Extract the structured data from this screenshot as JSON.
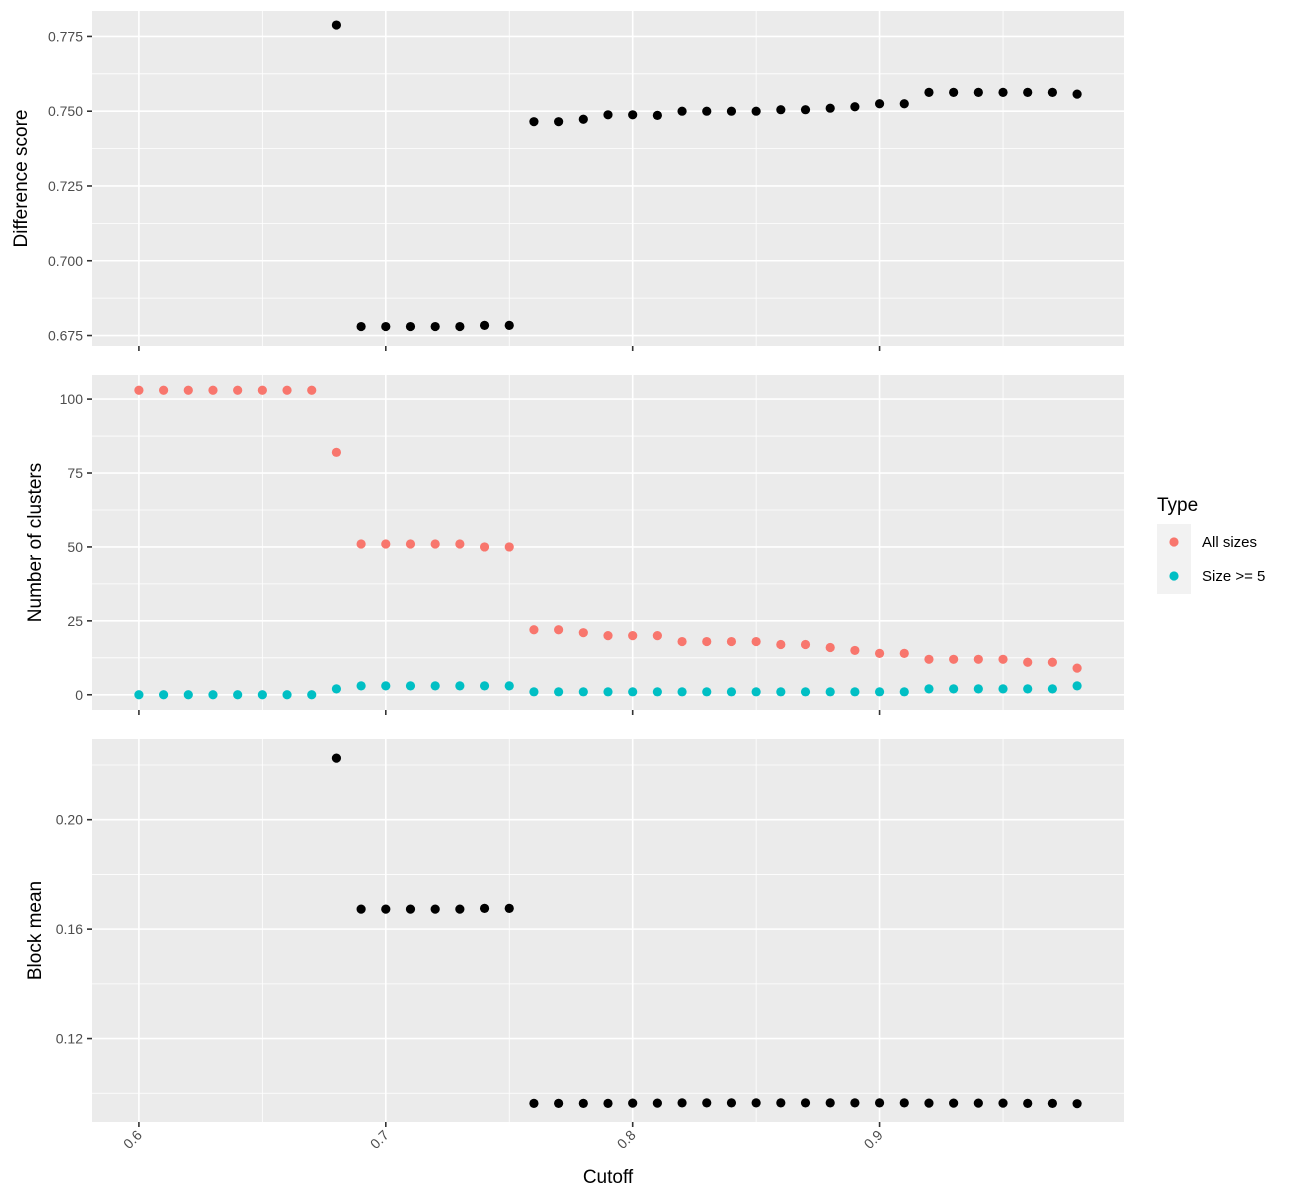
{
  "chart_data": {
    "type": "scatter",
    "x_title": "Cutoff",
    "x_ticks": [
      0.6,
      0.7,
      0.8,
      0.9
    ],
    "x_range": [
      0.581,
      0.999
    ],
    "x": [
      0.6,
      0.61,
      0.62,
      0.63,
      0.64,
      0.65,
      0.66,
      0.67,
      0.68,
      0.69,
      0.7,
      0.71,
      0.72,
      0.73,
      0.74,
      0.75,
      0.76,
      0.77,
      0.78,
      0.79,
      0.8,
      0.81,
      0.82,
      0.83,
      0.84,
      0.85,
      0.86,
      0.87,
      0.88,
      0.89,
      0.9,
      0.91,
      0.92,
      0.93,
      0.94,
      0.95,
      0.96,
      0.97,
      0.98
    ],
    "grid": true,
    "panels": [
      {
        "ylabel": "Difference score",
        "ylim": [
          0.6715,
          0.7835
        ],
        "yticks": [
          0.675,
          0.7,
          0.725,
          0.75,
          0.775
        ],
        "ytick_labels": [
          "0.675",
          "0.700",
          "0.725",
          "0.750",
          "0.775"
        ],
        "series": [
          {
            "color": "#000000",
            "points": [
              [
                0.68,
                0.7788
              ],
              [
                0.69,
                0.678
              ],
              [
                0.7,
                0.678
              ],
              [
                0.71,
                0.678
              ],
              [
                0.72,
                0.678
              ],
              [
                0.73,
                0.678
              ],
              [
                0.74,
                0.6784
              ],
              [
                0.75,
                0.6784
              ],
              [
                0.76,
                0.7465
              ],
              [
                0.77,
                0.7465
              ],
              [
                0.78,
                0.7473
              ],
              [
                0.79,
                0.7488
              ],
              [
                0.8,
                0.7488
              ],
              [
                0.81,
                0.7486
              ],
              [
                0.82,
                0.75
              ],
              [
                0.83,
                0.75
              ],
              [
                0.84,
                0.75
              ],
              [
                0.85,
                0.75
              ],
              [
                0.86,
                0.7505
              ],
              [
                0.87,
                0.7505
              ],
              [
                0.88,
                0.751
              ],
              [
                0.89,
                0.7515
              ],
              [
                0.9,
                0.7525
              ],
              [
                0.91,
                0.7525
              ],
              [
                0.92,
                0.7563
              ],
              [
                0.93,
                0.7563
              ],
              [
                0.94,
                0.7563
              ],
              [
                0.95,
                0.7563
              ],
              [
                0.96,
                0.7563
              ],
              [
                0.97,
                0.7563
              ],
              [
                0.98,
                0.7557
              ]
            ]
          }
        ]
      },
      {
        "ylabel": "Number of clusters",
        "ylim": [
          -5.15,
          108.15
        ],
        "yticks": [
          0,
          25,
          50,
          75,
          100
        ],
        "ytick_labels": [
          "0",
          "25",
          "50",
          "75",
          "100"
        ],
        "series": [
          {
            "name": "All sizes",
            "color": "#F8766D",
            "points": [
              [
                0.6,
                103
              ],
              [
                0.61,
                103
              ],
              [
                0.62,
                103
              ],
              [
                0.63,
                103
              ],
              [
                0.64,
                103
              ],
              [
                0.65,
                103
              ],
              [
                0.66,
                103
              ],
              [
                0.67,
                103
              ],
              [
                0.68,
                82
              ],
              [
                0.69,
                51
              ],
              [
                0.7,
                51
              ],
              [
                0.71,
                51
              ],
              [
                0.72,
                51
              ],
              [
                0.73,
                51
              ],
              [
                0.74,
                50
              ],
              [
                0.75,
                50
              ],
              [
                0.76,
                22
              ],
              [
                0.77,
                22
              ],
              [
                0.78,
                21
              ],
              [
                0.79,
                20
              ],
              [
                0.8,
                20
              ],
              [
                0.81,
                20
              ],
              [
                0.82,
                18
              ],
              [
                0.83,
                18
              ],
              [
                0.84,
                18
              ],
              [
                0.85,
                18
              ],
              [
                0.86,
                17
              ],
              [
                0.87,
                17
              ],
              [
                0.88,
                16
              ],
              [
                0.89,
                15
              ],
              [
                0.9,
                14
              ],
              [
                0.91,
                14
              ],
              [
                0.92,
                12
              ],
              [
                0.93,
                12
              ],
              [
                0.94,
                12
              ],
              [
                0.95,
                12
              ],
              [
                0.96,
                11
              ],
              [
                0.97,
                11
              ],
              [
                0.98,
                9
              ]
            ]
          },
          {
            "name": "Size >= 5",
            "color": "#00BFC4",
            "points": [
              [
                0.6,
                0
              ],
              [
                0.61,
                0
              ],
              [
                0.62,
                0
              ],
              [
                0.63,
                0
              ],
              [
                0.64,
                0
              ],
              [
                0.65,
                0
              ],
              [
                0.66,
                0
              ],
              [
                0.67,
                0
              ],
              [
                0.68,
                2
              ],
              [
                0.69,
                3
              ],
              [
                0.7,
                3
              ],
              [
                0.71,
                3
              ],
              [
                0.72,
                3
              ],
              [
                0.73,
                3
              ],
              [
                0.74,
                3
              ],
              [
                0.75,
                3
              ],
              [
                0.76,
                1
              ],
              [
                0.77,
                1
              ],
              [
                0.78,
                1
              ],
              [
                0.79,
                1
              ],
              [
                0.8,
                1
              ],
              [
                0.81,
                1
              ],
              [
                0.82,
                1
              ],
              [
                0.83,
                1
              ],
              [
                0.84,
                1
              ],
              [
                0.85,
                1
              ],
              [
                0.86,
                1
              ],
              [
                0.87,
                1
              ],
              [
                0.88,
                1
              ],
              [
                0.89,
                1
              ],
              [
                0.9,
                1
              ],
              [
                0.91,
                1
              ],
              [
                0.92,
                2
              ],
              [
                0.93,
                2
              ],
              [
                0.94,
                2
              ],
              [
                0.95,
                2
              ],
              [
                0.96,
                2
              ],
              [
                0.97,
                2
              ],
              [
                0.98,
                3
              ]
            ]
          }
        ]
      },
      {
        "ylabel": "Block mean",
        "ylim": [
          0.0895,
          0.2295
        ],
        "yticks": [
          0.12,
          0.16,
          0.2
        ],
        "ytick_labels": [
          "0.12",
          "0.16",
          "0.20"
        ],
        "series": [
          {
            "color": "#000000",
            "points": [
              [
                0.68,
                0.2225
              ],
              [
                0.69,
                0.1673
              ],
              [
                0.7,
                0.1673
              ],
              [
                0.71,
                0.1673
              ],
              [
                0.72,
                0.1673
              ],
              [
                0.73,
                0.1673
              ],
              [
                0.74,
                0.1676
              ],
              [
                0.75,
                0.1676
              ],
              [
                0.76,
                0.0963
              ],
              [
                0.77,
                0.0963
              ],
              [
                0.78,
                0.0963
              ],
              [
                0.79,
                0.0963
              ],
              [
                0.8,
                0.0964
              ],
              [
                0.81,
                0.0964
              ],
              [
                0.82,
                0.0965
              ],
              [
                0.83,
                0.0965
              ],
              [
                0.84,
                0.0965
              ],
              [
                0.85,
                0.0965
              ],
              [
                0.86,
                0.0965
              ],
              [
                0.87,
                0.0965
              ],
              [
                0.88,
                0.0965
              ],
              [
                0.89,
                0.0965
              ],
              [
                0.9,
                0.0965
              ],
              [
                0.91,
                0.0965
              ],
              [
                0.92,
                0.0964
              ],
              [
                0.93,
                0.0964
              ],
              [
                0.94,
                0.0964
              ],
              [
                0.95,
                0.0964
              ],
              [
                0.96,
                0.0963
              ],
              [
                0.97,
                0.0963
              ],
              [
                0.98,
                0.0962
              ]
            ]
          }
        ]
      }
    ],
    "legend": {
      "title": "Type",
      "placement": "right",
      "entries": [
        {
          "label": "All sizes",
          "color": "#F8766D"
        },
        {
          "label": "Size >= 5",
          "color": "#00BFC4"
        }
      ]
    }
  }
}
